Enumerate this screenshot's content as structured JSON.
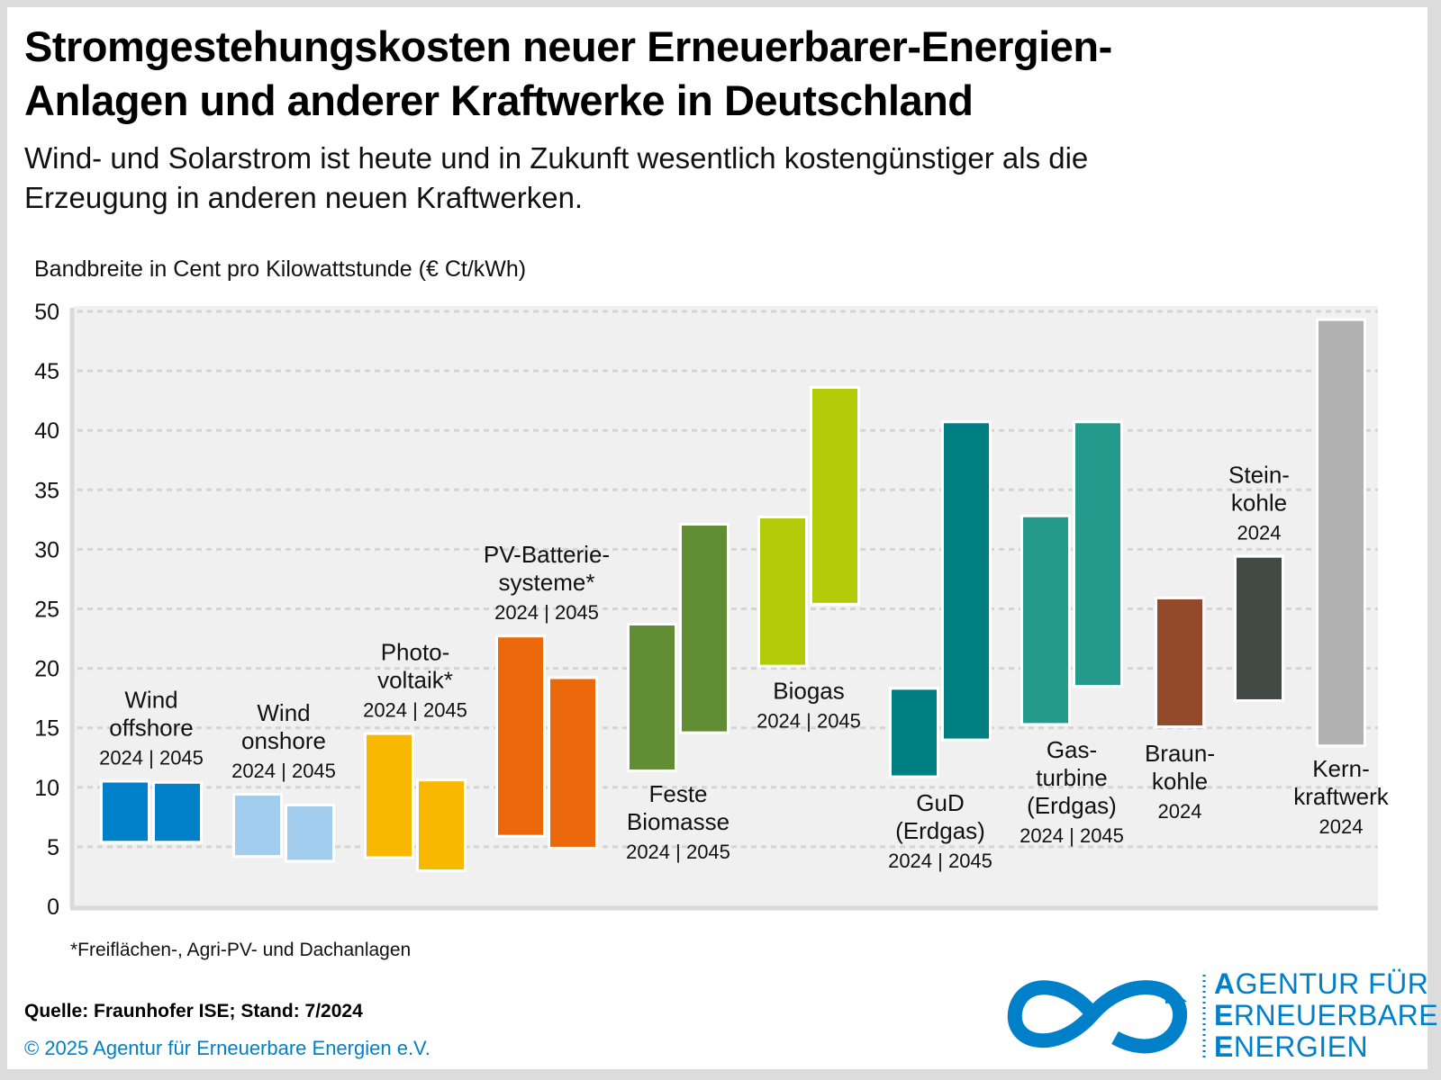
{
  "header": {
    "title_line1": "Stromgestehungskosten neuer Erneuerbarer-Energien-",
    "title_line2": "Anlagen und anderer Kraftwerke in Deutschland",
    "subtitle_line1": "Wind- und Solarstrom ist heute und in Zukunft wesentlich kostengünstiger als die",
    "subtitle_line2": "Erzeugung in anderen neuen Kraftwerken."
  },
  "footer": {
    "footnote": "*Freiflächen-, Agri-PV- und Dachanlagen",
    "source": "Quelle: Fraunhofer ISE; Stand: 7/2024",
    "copyright": "© 2025 Agentur für Erneuerbare Energien e.V.",
    "logo_icon": "infinity-arrow-icon",
    "logo_lines": [
      {
        "initial": "A",
        "rest": "GENTUR FÜR"
      },
      {
        "initial": "E",
        "rest": "RNEUERBARE"
      },
      {
        "initial": "E",
        "rest": "NERGIEN"
      }
    ],
    "brand_color": "#0080c8"
  },
  "chart_data": {
    "type": "floating-bar",
    "title": "Stromgestehungskosten neuer Erneuerbarer-Energien-Anlagen und anderer Kraftwerke in Deutschland",
    "ylabel": "Bandbreite in Cent pro Kilowattstunde (€ Ct/kWh)",
    "xlabel": "",
    "ylim": [
      0,
      50
    ],
    "yticks": [
      0,
      5,
      10,
      15,
      20,
      25,
      30,
      35,
      40,
      45,
      50
    ],
    "grid": true,
    "legend": "none",
    "groups": [
      {
        "name": "Wind offshore",
        "label_lines": [
          "Wind",
          "offshore"
        ],
        "years_label": "2024 | 2045",
        "label_pos": "above",
        "color": "#0080c8",
        "bars": [
          {
            "year": "2024",
            "low": 5.5,
            "high": 10.4
          },
          {
            "year": "2045",
            "low": 5.5,
            "high": 10.3
          }
        ]
      },
      {
        "name": "Wind onshore",
        "label_lines": [
          "Wind",
          "onshore"
        ],
        "years_label": "2024 | 2045",
        "label_pos": "above",
        "color": "#a3cdee",
        "bars": [
          {
            "year": "2024",
            "low": 4.3,
            "high": 9.3
          },
          {
            "year": "2045",
            "low": 3.9,
            "high": 8.4
          }
        ]
      },
      {
        "name": "Photovoltaik*",
        "label_lines": [
          "Photo-",
          "voltaik*"
        ],
        "years_label": "2024 | 2045",
        "label_pos": "above",
        "color": "#f9b800",
        "bars": [
          {
            "year": "2024",
            "low": 4.2,
            "high": 14.4
          },
          {
            "year": "2045",
            "low": 3.1,
            "high": 10.5
          }
        ]
      },
      {
        "name": "PV-Batteriesysteme*",
        "label_lines": [
          "PV-Batterie-",
          "systeme*"
        ],
        "years_label": "2024 | 2045",
        "label_pos": "above",
        "color": "#eb690b",
        "bars": [
          {
            "year": "2024",
            "low": 6.0,
            "high": 22.6
          },
          {
            "year": "2045",
            "low": 5.0,
            "high": 19.1
          }
        ]
      },
      {
        "name": "Feste Biomasse",
        "label_lines": [
          "Feste",
          "Biomasse"
        ],
        "years_label": "2024 | 2045",
        "label_pos": "below",
        "color": "#618e34",
        "bars": [
          {
            "year": "2024",
            "low": 11.5,
            "high": 23.6
          },
          {
            "year": "2045",
            "low": 14.7,
            "high": 32.0
          }
        ]
      },
      {
        "name": "Biogas",
        "label_lines": [
          "Biogas"
        ],
        "years_label": "2024 | 2045",
        "label_pos": "below",
        "color": "#b1cb09",
        "bars": [
          {
            "year": "2024",
            "low": 20.3,
            "high": 32.6
          },
          {
            "year": "2045",
            "low": 25.5,
            "high": 43.5
          }
        ]
      },
      {
        "name": "GuD (Erdgas)",
        "label_lines": [
          "GuD",
          "(Erdgas)"
        ],
        "years_label": "2024 | 2045",
        "label_pos": "below",
        "color": "#007f83",
        "bars": [
          {
            "year": "2024",
            "low": 11.0,
            "high": 18.2
          },
          {
            "year": "2045",
            "low": 14.1,
            "high": 40.6
          }
        ]
      },
      {
        "name": "Gasturbine (Erdgas)",
        "label_lines": [
          "Gas-",
          "turbine",
          "(Erdgas)"
        ],
        "years_label": "2024 | 2045",
        "label_pos": "below",
        "color": "#239a8b",
        "bars": [
          {
            "year": "2024",
            "low": 15.4,
            "high": 32.7
          },
          {
            "year": "2045",
            "low": 18.6,
            "high": 40.6
          }
        ]
      },
      {
        "name": "Braunkohle",
        "label_lines": [
          "Braun-",
          "kohle"
        ],
        "years_label": "2024",
        "label_pos": "below",
        "color": "#934a2a",
        "bars": [
          {
            "year": "2024",
            "low": 15.2,
            "high": 25.8
          }
        ]
      },
      {
        "name": "Steinkohle",
        "label_lines": [
          "Stein-",
          "kohle"
        ],
        "years_label": "2024",
        "label_pos": "above",
        "color": "#424a45",
        "bars": [
          {
            "year": "2024",
            "low": 17.4,
            "high": 29.3
          }
        ]
      },
      {
        "name": "Kernkraftwerk",
        "label_lines": [
          "Kern-",
          "kraftwerk"
        ],
        "years_label": "2024",
        "label_pos": "below",
        "color": "#b2b1b1",
        "bars": [
          {
            "year": "2024",
            "low": 13.6,
            "high": 49.2
          }
        ]
      }
    ]
  }
}
